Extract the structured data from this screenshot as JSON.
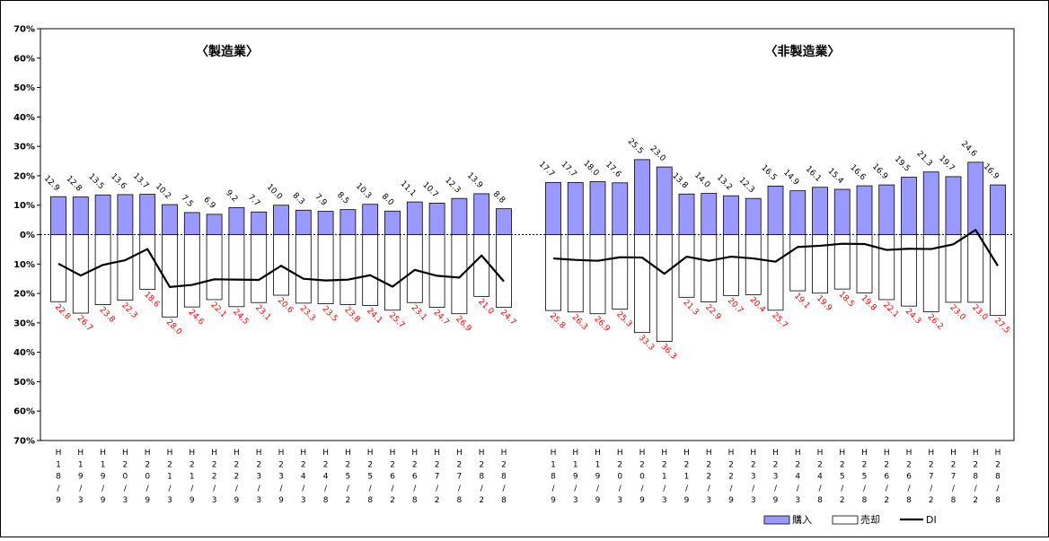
{
  "chart_data": {
    "type": "bar",
    "y_axis": {
      "ticks": [
        "70%",
        "60%",
        "50%",
        "40%",
        "30%",
        "20%",
        "10%",
        "0%",
        "10%",
        "20%",
        "30%",
        "40%",
        "50%",
        "60%",
        "70%"
      ],
      "ylim": [
        -70,
        70
      ]
    },
    "legend": {
      "position": "bottom-right",
      "entries": [
        {
          "name": "購入",
          "color": "#9999ff"
        },
        {
          "name": "売却",
          "color": "#ffffff"
        },
        {
          "name": "DI",
          "color": "#000000"
        }
      ]
    },
    "colors": {
      "purchase": "#9999ff",
      "sale": "#ffffff",
      "di": "#000000",
      "sale_label": "#ff0000"
    },
    "panels": [
      {
        "title": "〈製造業〉",
        "categories": [
          "H18/9",
          "H19/3",
          "H19/9",
          "H20/3",
          "H20/9",
          "H21/3",
          "H21/9",
          "H22/3",
          "H22/9",
          "H23/3",
          "H23/9",
          "H24/3",
          "H24/8",
          "H25/2",
          "H25/8",
          "H26/2",
          "H26/8",
          "H27/2",
          "H27/8",
          "H28/2",
          "H28/8"
        ],
        "series": [
          {
            "name": "購入",
            "values": [
              12.9,
              12.8,
              13.5,
              13.6,
              13.7,
              10.2,
              7.5,
              6.9,
              9.2,
              7.7,
              10.0,
              8.3,
              7.9,
              8.5,
              10.3,
              8.0,
              11.1,
              10.7,
              12.3,
              13.9,
              8.8
            ]
          },
          {
            "name": "売却",
            "values": [
              22.8,
              26.7,
              23.8,
              22.3,
              18.6,
              28.0,
              24.6,
              22.1,
              24.5,
              23.1,
              20.6,
              23.3,
              23.5,
              23.8,
              24.1,
              25.7,
              23.1,
              24.7,
              26.9,
              21.0,
              24.7
            ]
          },
          {
            "name": "DI",
            "values": [
              -9.9,
              -13.9,
              -10.3,
              -8.7,
              -4.9,
              -17.8,
              -17.1,
              -15.2,
              -15.3,
              -15.4,
              -10.6,
              -15.0,
              -15.6,
              -15.3,
              -13.8,
              -17.7,
              -12.0,
              -14.0,
              -14.6,
              -7.1,
              -15.9
            ]
          }
        ]
      },
      {
        "title": "〈非製造業〉",
        "categories": [
          "H18/9",
          "H19/3",
          "H19/9",
          "H20/3",
          "H20/9",
          "H21/3",
          "H21/9",
          "H22/3",
          "H22/9",
          "H23/3",
          "H23/9",
          "H24/3",
          "H24/8",
          "H25/2",
          "H25/8",
          "H26/2",
          "H26/8",
          "H27/2",
          "H27/8",
          "H28/2",
          "H28/8"
        ],
        "series": [
          {
            "name": "購入",
            "values": [
              17.7,
              17.7,
              18.0,
              17.6,
              25.5,
              23.0,
              13.8,
              14.0,
              13.2,
              12.3,
              16.5,
              14.9,
              16.1,
              15.4,
              16.6,
              16.9,
              19.5,
              21.3,
              19.7,
              24.6,
              16.9
            ]
          },
          {
            "name": "売却",
            "values": [
              25.8,
              26.3,
              26.9,
              25.3,
              33.3,
              36.3,
              21.3,
              22.9,
              20.7,
              20.4,
              25.7,
              19.1,
              19.9,
              18.5,
              19.8,
              22.1,
              24.3,
              26.2,
              23.0,
              23.0,
              27.5
            ]
          },
          {
            "name": "DI",
            "values": [
              -8.1,
              -8.6,
              -8.9,
              -7.7,
              -7.8,
              -13.3,
              -7.5,
              -8.9,
              -7.5,
              -8.1,
              -9.2,
              -4.2,
              -3.8,
              -3.1,
              -3.2,
              -5.2,
              -4.8,
              -4.9,
              -3.3,
              1.6,
              -10.6
            ]
          }
        ]
      }
    ]
  }
}
